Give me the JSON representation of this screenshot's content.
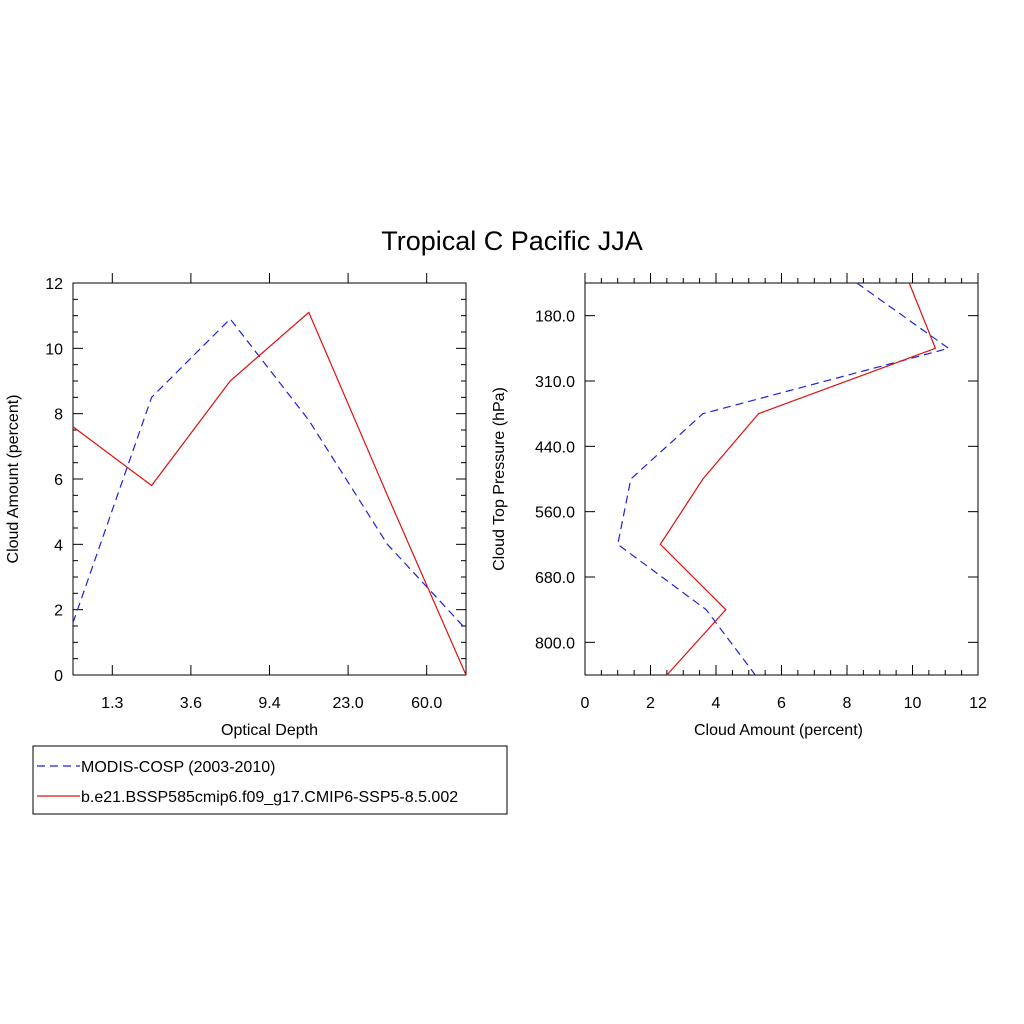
{
  "title": "Tropical C Pacific JJA",
  "colors": {
    "obs": "#2020dd",
    "model": "#e01010"
  },
  "legend": {
    "entries": [
      {
        "label": "MODIS-COSP (2003-2010)",
        "style": "dashed",
        "color": "#2020dd"
      },
      {
        "label": "b.e21.BSSP585cmip6.f09_g17.CMIP6-SSP5-8.5.002",
        "style": "solid",
        "color": "#e01010"
      }
    ]
  },
  "chart_data": [
    {
      "type": "line",
      "xlabel": "Optical Depth",
      "ylabel": "Cloud Amount (percent)",
      "x_tick_labels": [
        "1.3",
        "3.6",
        "9.4",
        "23.0",
        "60.0"
      ],
      "ylim": [
        0,
        12
      ],
      "y_ticks": [
        "0",
        "2",
        "4",
        "6",
        "8",
        "10",
        "12"
      ],
      "x_bin_index": [
        0,
        1,
        2,
        3,
        4,
        5
      ],
      "series": [
        {
          "name": "MODIS-COSP (2003-2010)",
          "values": [
            1.6,
            8.5,
            10.9,
            7.8,
            4.0,
            1.4
          ]
        },
        {
          "name": "b.e21.BSSP585cmip6.f09_g17.CMIP6-SSP5-8.5.002",
          "values": [
            7.6,
            5.8,
            9.0,
            11.1,
            5.5,
            0.0
          ]
        }
      ]
    },
    {
      "type": "line",
      "xlabel": "Cloud Amount (percent)",
      "ylabel": "Cloud Top Pressure (hPa)",
      "xlim": [
        0,
        12
      ],
      "x_ticks": [
        "0",
        "2",
        "4",
        "6",
        "8",
        "10",
        "12"
      ],
      "y_tick_labels": [
        "180.0",
        "310.0",
        "440.0",
        "560.0",
        "680.0",
        "800.0"
      ],
      "y_bin_index": [
        0,
        1,
        2,
        3,
        4,
        5,
        6
      ],
      "series": [
        {
          "name": "MODIS-COSP (2003-2010)",
          "values": [
            8.3,
            11.1,
            3.6,
            1.4,
            1.0,
            3.7,
            5.2
          ]
        },
        {
          "name": "b.e21.BSSP585cmip6.f09_g17.CMIP6-SSP5-8.5.002",
          "values": [
            9.9,
            10.7,
            5.3,
            3.6,
            2.3,
            4.3,
            2.5
          ]
        }
      ]
    }
  ]
}
